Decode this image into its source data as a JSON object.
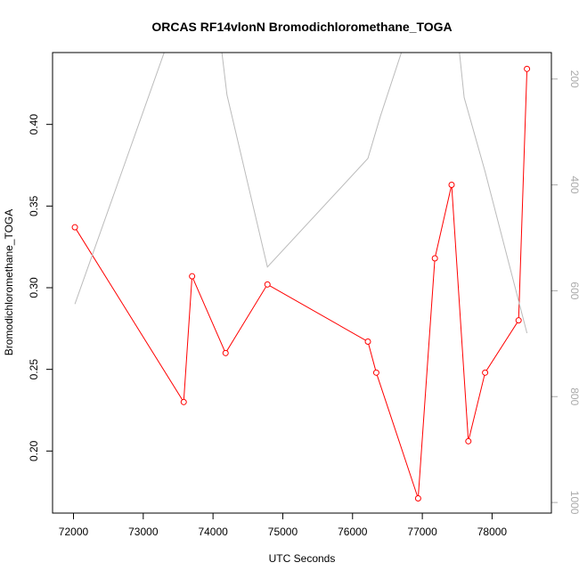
{
  "chart_data": {
    "type": "line",
    "title": "ORCAS RF14vlonN Bromodichloromethane_TOGA",
    "xlabel": "UTC Seconds",
    "ylabel": "Bromodichloromethane_TOGA",
    "xlim": [
      71700,
      78850
    ],
    "ylim": [
      0.162,
      0.444
    ],
    "y2lim": [
      1020,
      150
    ],
    "x_ticks": [
      72000,
      73000,
      74000,
      75000,
      76000,
      77000,
      78000
    ],
    "y_ticks": [
      0.2,
      0.25,
      0.3,
      0.35,
      0.4
    ],
    "y_tick_labels": [
      "0.20",
      "0.25",
      "0.30",
      "0.35",
      "0.40"
    ],
    "y2_ticks": [
      200,
      400,
      600,
      800,
      1000
    ],
    "series": [
      {
        "color": "#ff0000",
        "markers": true,
        "axis": "left",
        "x": [
          72020,
          73580,
          73700,
          74180,
          74780,
          76220,
          76340,
          76940,
          77180,
          77420,
          77660,
          77900,
          78380,
          78500
        ],
        "y": [
          0.337,
          0.23,
          0.307,
          0.26,
          0.302,
          0.267,
          0.248,
          0.171,
          0.318,
          0.363,
          0.206,
          0.248,
          0.28,
          0.434
        ]
      },
      {
        "color": "#bbbbbb",
        "markers": false,
        "axis": "right",
        "x": [
          72020,
          73300,
          73500,
          74100,
          74200,
          74780,
          76220,
          76400,
          77200,
          77500,
          77600,
          77900,
          78500
        ],
        "y": [
          625,
          150,
          70,
          120,
          230,
          555,
          350,
          270,
          -50,
          110,
          235,
          375,
          680
        ]
      }
    ]
  }
}
